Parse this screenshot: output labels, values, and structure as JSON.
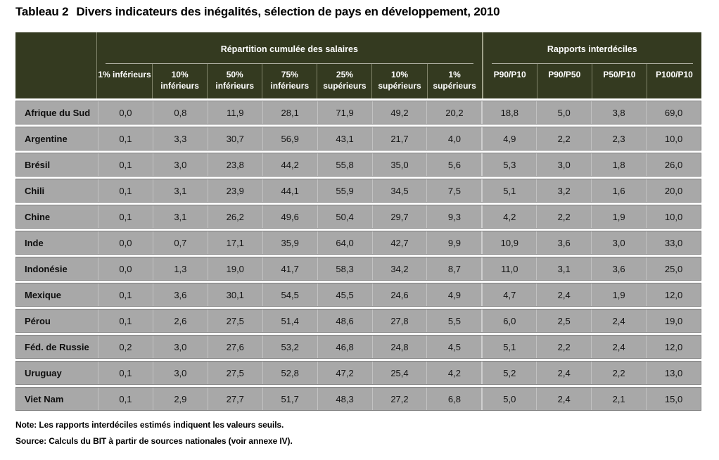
{
  "title": {
    "label": "Tableau 2",
    "text": "Divers indicateurs des inégalités, sélection de pays en développement, 2010"
  },
  "table": {
    "groups": [
      {
        "label": "Répartition cumulée des salaires"
      },
      {
        "label": "Rapports interdéciles"
      }
    ],
    "columns": [
      "1% inférieurs",
      "10% inférieurs",
      "50% inférieurs",
      "75% inférieurs",
      "25% supérieurs",
      "10% supérieurs",
      "1% supérieurs",
      "P90/P10",
      "P90/P50",
      "P50/P10",
      "P100/P10"
    ],
    "rows": [
      {
        "country": "Afrique du Sud",
        "values": [
          "0,0",
          "0,8",
          "11,9",
          "28,1",
          "71,9",
          "49,2",
          "20,2",
          "18,8",
          "5,0",
          "3,8",
          "69,0"
        ]
      },
      {
        "country": "Argentine",
        "values": [
          "0,1",
          "3,3",
          "30,7",
          "56,9",
          "43,1",
          "21,7",
          "4,0",
          "4,9",
          "2,2",
          "2,3",
          "10,0"
        ]
      },
      {
        "country": "Brésil",
        "values": [
          "0,1",
          "3,0",
          "23,8",
          "44,2",
          "55,8",
          "35,0",
          "5,6",
          "5,3",
          "3,0",
          "1,8",
          "26,0"
        ]
      },
      {
        "country": "Chili",
        "values": [
          "0,1",
          "3,1",
          "23,9",
          "44,1",
          "55,9",
          "34,5",
          "7,5",
          "5,1",
          "3,2",
          "1,6",
          "20,0"
        ]
      },
      {
        "country": "Chine",
        "values": [
          "0,1",
          "3,1",
          "26,2",
          "49,6",
          "50,4",
          "29,7",
          "9,3",
          "4,2",
          "2,2",
          "1,9",
          "10,0"
        ]
      },
      {
        "country": "Inde",
        "values": [
          "0,0",
          "0,7",
          "17,1",
          "35,9",
          "64,0",
          "42,7",
          "9,9",
          "10,9",
          "3,6",
          "3,0",
          "33,0"
        ]
      },
      {
        "country": "Indonésie",
        "values": [
          "0,0",
          "1,3",
          "19,0",
          "41,7",
          "58,3",
          "34,2",
          "8,7",
          "11,0",
          "3,1",
          "3,6",
          "25,0"
        ]
      },
      {
        "country": "Mexique",
        "values": [
          "0,1",
          "3,6",
          "30,1",
          "54,5",
          "45,5",
          "24,6",
          "4,9",
          "4,7",
          "2,4",
          "1,9",
          "12,0"
        ]
      },
      {
        "country": "Pérou",
        "values": [
          "0,1",
          "2,6",
          "27,5",
          "51,4",
          "48,6",
          "27,8",
          "5,5",
          "6,0",
          "2,5",
          "2,4",
          "19,0"
        ]
      },
      {
        "country": "Féd. de Russie",
        "values": [
          "0,2",
          "3,0",
          "27,6",
          "53,2",
          "46,8",
          "24,8",
          "4,5",
          "5,1",
          "2,2",
          "2,4",
          "12,0"
        ]
      },
      {
        "country": "Uruguay",
        "values": [
          "0,1",
          "3,0",
          "27,5",
          "52,8",
          "47,2",
          "25,4",
          "4,2",
          "5,2",
          "2,4",
          "2,2",
          "13,0"
        ]
      },
      {
        "country": "Viet Nam",
        "values": [
          "0,1",
          "2,9",
          "27,7",
          "51,7",
          "48,3",
          "27,2",
          "6,8",
          "5,0",
          "2,4",
          "2,1",
          "15,0"
        ]
      }
    ]
  },
  "notes": {
    "note": "Note: Les rapports interdéciles estimés indiquent les valeurs seuils.",
    "source": "Source: Calculs du BIT à partir de sources nationales (voir annexe IV)."
  },
  "colors": {
    "header_bg": "#343a20",
    "header_text": "#ffffff",
    "row_bg": "#a8a8a8",
    "row_border": "#7e7e7e",
    "cell_divider": "#c2c2c2",
    "header_divider": "#80836a",
    "group_rule": "#b7b7ab",
    "body_text": "#141414"
  }
}
